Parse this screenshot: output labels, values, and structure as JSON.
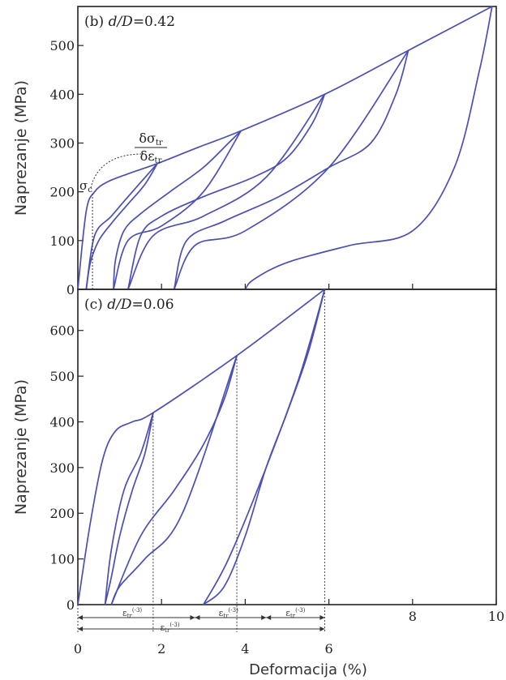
{
  "chart_data": [
    {
      "type": "line",
      "panel_label": "(b) d/D=0.42",
      "panel_label_prefix": "(b) ",
      "panel_label_var": "d/D",
      "panel_label_value": "=0.42",
      "ylabel": "Naprezanje (MPa)",
      "xlabel": "",
      "xlim": [
        0,
        10
      ],
      "ylim": [
        0,
        580
      ],
      "x_ticks": [
        0,
        2,
        4,
        6,
        8,
        10
      ],
      "y_ticks": [
        0,
        100,
        200,
        300,
        400,
        500
      ],
      "y_tick_labels": [
        "0",
        "100",
        "200",
        "300",
        "400",
        "500"
      ],
      "annotations": {
        "slope_numerator": "δσ",
        "slope_numerator_sub": "tr",
        "slope_denominator": "δε",
        "slope_denominator_sub": "tr",
        "critical_stress": "σ",
        "critical_stress_sub": "c"
      },
      "series": [
        {
          "values_kind": "envelope",
          "x": [
            0,
            0.2,
            0.4,
            0.7,
            1.2,
            1.9,
            2.9,
            3.9,
            5.9,
            7.9,
            9.9
          ],
          "y": [
            0,
            160,
            200,
            220,
            237,
            258,
            292,
            325,
            400,
            490,
            580
          ]
        },
        {
          "values_kind": "unload",
          "x": [
            1.9,
            1.6,
            1.2,
            0.8,
            0.5,
            0.3,
            0.2
          ],
          "y": [
            258,
            215,
            175,
            135,
            100,
            55,
            0
          ]
        },
        {
          "values_kind": "unload",
          "x": [
            3.9,
            3.6,
            3.0,
            2.2,
            1.5,
            1.1,
            0.9,
            0.85
          ],
          "y": [
            325,
            300,
            250,
            200,
            155,
            120,
            60,
            0
          ]
        },
        {
          "values_kind": "unload",
          "x": [
            5.9,
            5.6,
            5.0,
            4.2,
            3.0,
            2.0,
            1.5,
            1.2
          ],
          "y": [
            400,
            340,
            270,
            230,
            190,
            150,
            110,
            0
          ]
        },
        {
          "values_kind": "unload",
          "x": [
            7.9,
            7.6,
            7.0,
            6.0,
            4.8,
            3.5,
            2.6,
            2.3
          ],
          "y": [
            490,
            400,
            300,
            250,
            190,
            140,
            100,
            0
          ]
        },
        {
          "values_kind": "unload",
          "x": [
            9.9,
            9.6,
            9.0,
            8.0,
            6.5,
            5.0,
            4.2,
            4.0
          ],
          "y": [
            580,
            450,
            250,
            120,
            90,
            55,
            20,
            0
          ]
        },
        {
          "values_kind": "reload",
          "x": [
            0.2,
            0.4,
            0.8,
            1.2,
            1.9
          ],
          "y": [
            0,
            110,
            150,
            190,
            258
          ]
        },
        {
          "values_kind": "reload",
          "x": [
            0.85,
            1.2,
            2.0,
            3.0,
            3.9
          ],
          "y": [
            0,
            100,
            130,
            200,
            325
          ]
        },
        {
          "values_kind": "reload",
          "x": [
            1.2,
            1.8,
            3.0,
            4.5,
            5.9
          ],
          "y": [
            0,
            110,
            150,
            230,
            400
          ]
        },
        {
          "values_kind": "reload",
          "x": [
            2.3,
            2.8,
            4.0,
            6.0,
            7.9
          ],
          "y": [
            0,
            90,
            120,
            250,
            490
          ]
        }
      ]
    },
    {
      "type": "line",
      "panel_label": "(c) d/D=0.06",
      "panel_label_prefix": "(c) ",
      "panel_label_var": "d/D",
      "panel_label_value": "=0.06",
      "ylabel": "Naprezanje (MPa)",
      "xlabel": "Deformacija (%)",
      "xlim": [
        0,
        10
      ],
      "ylim": [
        0,
        690
      ],
      "x_ticks": [
        0,
        2,
        4,
        6,
        8,
        10
      ],
      "x_tick_labels_top_row": [
        "8",
        "10"
      ],
      "x_tick_labels_bottom_row": [
        "0",
        "2",
        "4",
        "6"
      ],
      "y_ticks": [
        0,
        100,
        200,
        300,
        400,
        500,
        600
      ],
      "y_tick_labels": [
        "0",
        "100",
        "200",
        "300",
        "400",
        "500",
        "600"
      ],
      "annotations": {
        "strain_total": "ε",
        "strain_total_sub": "tr",
        "strain_total_sup": "(-3)",
        "strain_1": "ε",
        "strain_1_sub": "tr",
        "strain_1_sup": "(-3)",
        "strain_2": "ε",
        "strain_2_sub": "tr",
        "strain_2_sup": "(-3)",
        "strain_3": "ε",
        "strain_3_sub": "tr",
        "strain_3_sup": "(-3)"
      },
      "series": [
        {
          "values_kind": "envelope",
          "x": [
            0,
            0.3,
            0.6,
            0.9,
            1.3,
            1.8,
            3.8,
            5.9
          ],
          "y": [
            0,
            180,
            320,
            380,
            400,
            420,
            545,
            690
          ]
        },
        {
          "values_kind": "unload",
          "x": [
            1.8,
            1.6,
            1.3,
            1.0,
            0.8,
            0.65
          ],
          "y": [
            420,
            330,
            250,
            150,
            60,
            0
          ]
        },
        {
          "values_kind": "unload",
          "x": [
            3.8,
            3.5,
            3.0,
            2.3,
            1.5,
            0.8
          ],
          "y": [
            545,
            450,
            350,
            250,
            150,
            0
          ]
        },
        {
          "values_kind": "unload",
          "x": [
            5.9,
            5.5,
            5.0,
            4.5,
            4.0,
            3.5,
            3.0
          ],
          "y": [
            690,
            550,
            420,
            300,
            150,
            40,
            0
          ]
        },
        {
          "values_kind": "reload",
          "x": [
            0.65,
            0.8,
            1.1,
            1.5,
            1.8
          ],
          "y": [
            0,
            120,
            250,
            330,
            420
          ]
        },
        {
          "values_kind": "reload",
          "x": [
            0.8,
            1.0,
            1.6,
            2.5,
            3.8
          ],
          "y": [
            0,
            40,
            100,
            200,
            545
          ]
        },
        {
          "values_kind": "reload",
          "x": [
            3.0,
            3.6,
            4.5,
            5.3,
            5.9
          ],
          "y": [
            0,
            100,
            300,
            500,
            690
          ]
        }
      ]
    }
  ]
}
